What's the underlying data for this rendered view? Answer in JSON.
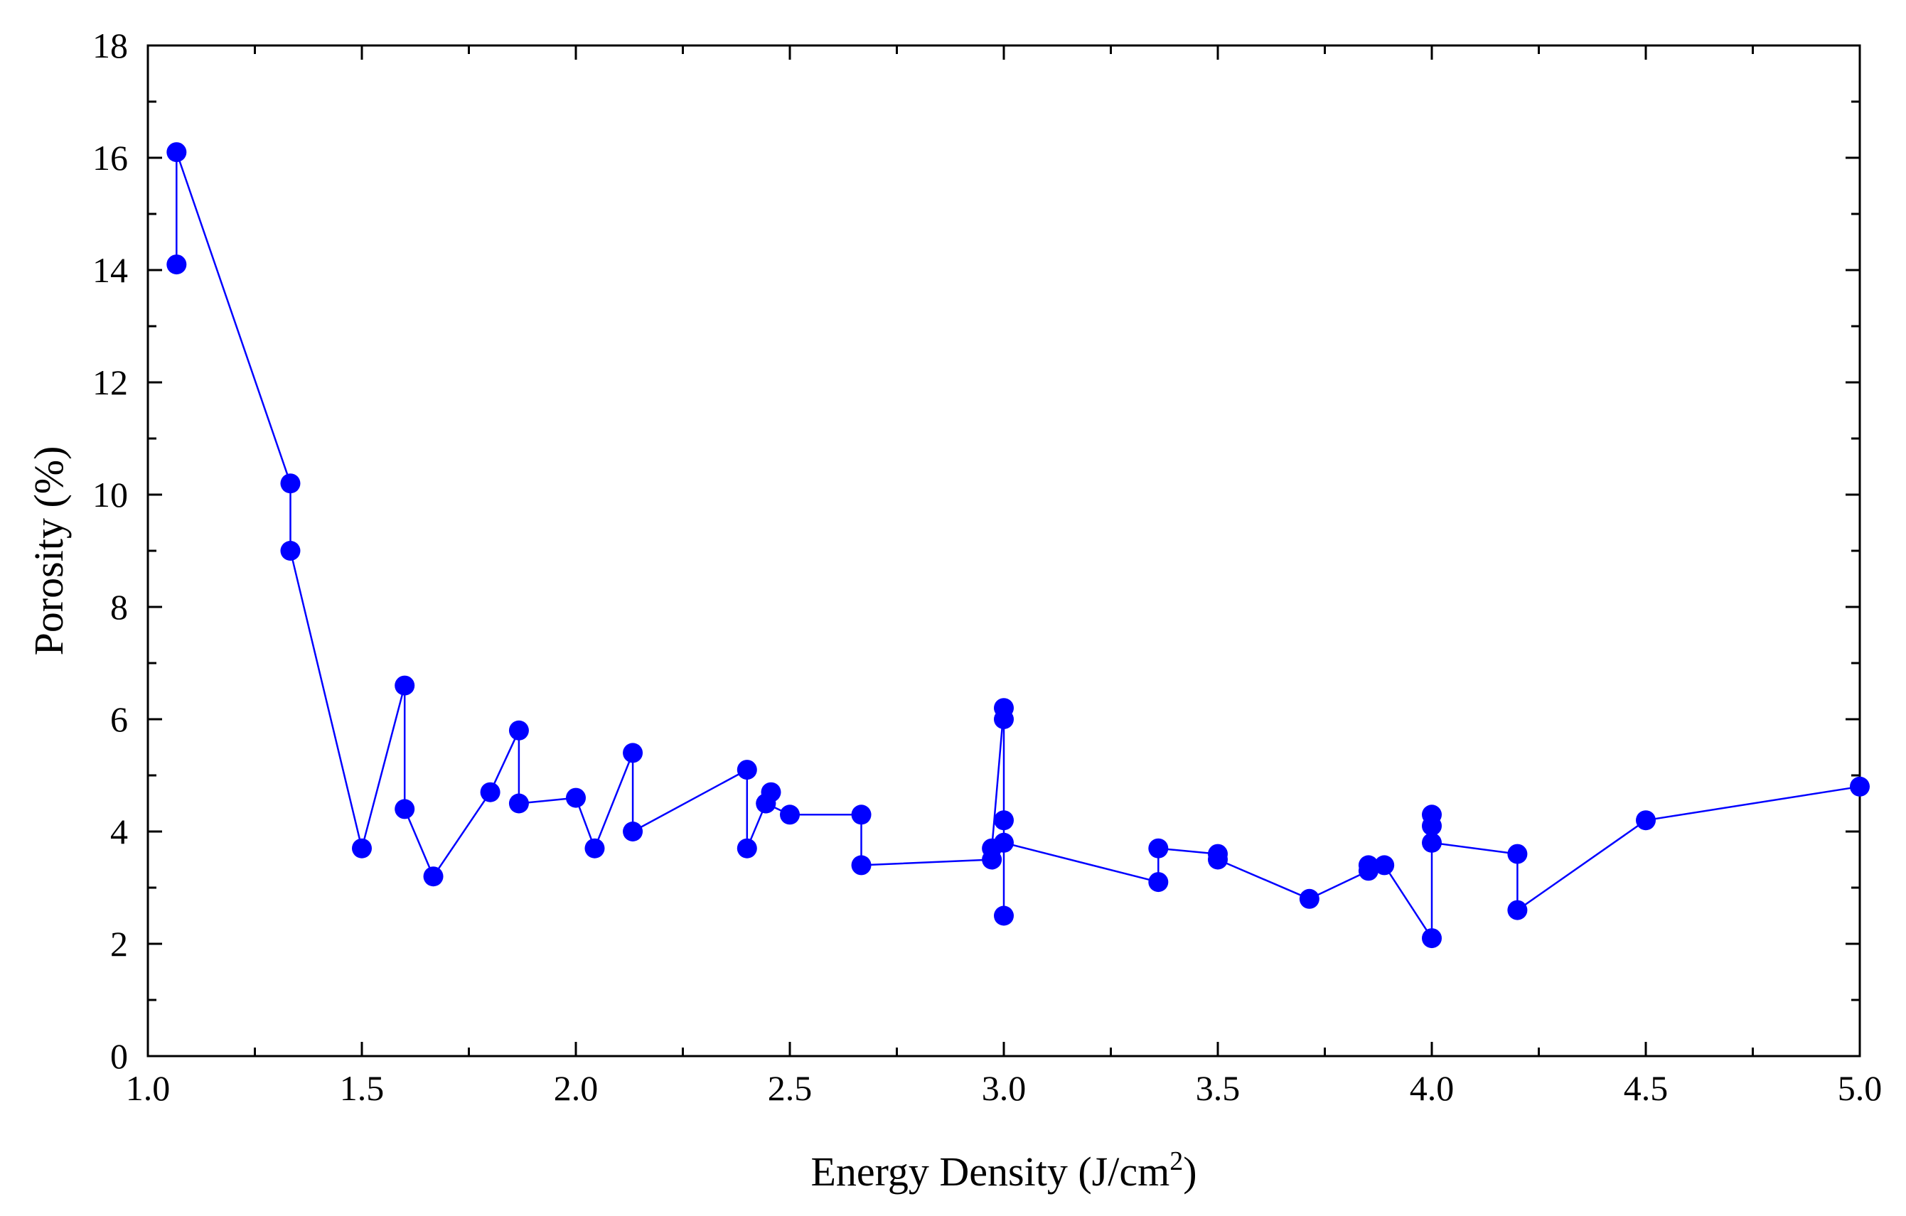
{
  "chart_data": {
    "type": "line",
    "title": "",
    "xlabel": "Energy Density (J/cm",
    "xlabel_sup": "2",
    "xlabel_suffix": ")",
    "ylabel": "Porosity (%)",
    "xlim": [
      1.0,
      5.0
    ],
    "ylim": [
      0,
      18
    ],
    "xticks": [
      1.0,
      1.5,
      2.0,
      2.5,
      3.0,
      3.5,
      4.0,
      4.5,
      5.0
    ],
    "xtick_labels": [
      "1.0",
      "1.5",
      "2.0",
      "2.5",
      "3.0",
      "3.5",
      "4.0",
      "4.5",
      "5.0"
    ],
    "xminor_ticks": [
      1.25,
      1.75,
      2.25,
      2.75,
      3.25,
      3.75,
      4.25,
      4.75
    ],
    "yticks": [
      0,
      2,
      4,
      6,
      8,
      10,
      12,
      14,
      16,
      18
    ],
    "ytick_labels": [
      "0",
      "2",
      "4",
      "6",
      "8",
      "10",
      "12",
      "14",
      "16",
      "18"
    ],
    "yminor_ticks": [
      1,
      3,
      5,
      7,
      9,
      11,
      13,
      15,
      17
    ],
    "grid": false,
    "series_color": "#0000ff",
    "series": [
      {
        "name": "Porosity",
        "x": [
          1.067,
          1.067,
          1.333,
          1.333,
          1.5,
          1.6,
          1.6,
          1.667,
          1.8,
          1.867,
          1.867,
          2.0,
          2.044,
          2.133,
          2.133,
          2.4,
          2.4,
          2.444,
          2.456,
          2.444,
          2.5,
          2.667,
          2.667,
          2.972,
          2.972,
          3.0,
          3.0,
          3.0,
          3.0,
          3.0,
          3.361,
          3.361,
          3.5,
          3.5,
          3.714,
          3.852,
          3.852,
          3.889,
          4.0,
          4.0,
          4.0,
          4.0,
          4.2,
          4.2,
          4.5,
          5.0
        ],
        "y": [
          14.1,
          16.1,
          10.2,
          9.0,
          3.7,
          6.6,
          4.4,
          3.2,
          4.7,
          5.8,
          4.5,
          4.6,
          3.7,
          5.4,
          4.0,
          5.1,
          3.7,
          4.5,
          4.7,
          4.5,
          4.3,
          4.3,
          3.4,
          3.5,
          3.7,
          6.2,
          6.0,
          4.2,
          2.5,
          3.8,
          3.1,
          3.7,
          3.6,
          3.5,
          2.8,
          3.3,
          3.4,
          3.4,
          2.1,
          4.3,
          4.1,
          3.8,
          3.6,
          2.6,
          4.2,
          4.8
        ]
      }
    ]
  }
}
